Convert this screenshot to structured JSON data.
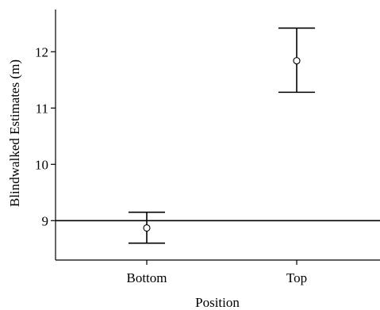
{
  "chart_data": {
    "type": "scatter",
    "xlabel": "Position",
    "ylabel": "Blindwalked Estimates (m)",
    "categories": [
      "Bottom",
      "Top"
    ],
    "values": [
      8.87,
      11.84
    ],
    "error_low": [
      8.6,
      11.28
    ],
    "error_high": [
      9.15,
      12.42
    ],
    "reference_line": 9,
    "ylim": [
      8.3,
      12.75
    ],
    "yticks": [
      9,
      10,
      11,
      12
    ],
    "grid": false
  }
}
